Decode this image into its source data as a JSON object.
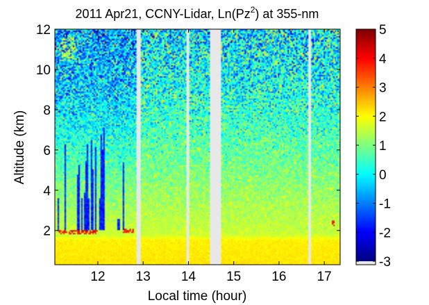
{
  "chart_data": {
    "type": "heatmap",
    "title": {
      "prefix": "2011 Apr21, CCNY-Lidar, Ln(Pz",
      "superscript": "2",
      "suffix": ") at 355-nm"
    },
    "xlabel": "Local time (hour)",
    "ylabel": "Altitude (km)",
    "xlim": [
      11.05,
      17.35
    ],
    "ylim": [
      0.3,
      12
    ],
    "x_ticks": [
      "12",
      "13",
      "14",
      "15",
      "16",
      "17"
    ],
    "y_ticks": [
      "2",
      "4",
      "6",
      "8",
      "10",
      "12"
    ],
    "colorbar": {
      "range": [
        -3,
        5
      ],
      "ticks": [
        "-3",
        "-2",
        "-1",
        "0",
        "1",
        "2",
        "3",
        "4",
        "5"
      ],
      "colormap": "jet",
      "nodata_color": "#e8e8e8"
    },
    "data_gaps_hours": [
      [
        12.85,
        12.95
      ],
      [
        13.97,
        14.02
      ],
      [
        14.47,
        14.73
      ],
      [
        16.65,
        16.72
      ]
    ],
    "boundary_layer_top_km": 1.6,
    "cloud_features_near_2km": [
      {
        "start_hour": 11.1,
        "end_hour": 12.0,
        "altitude_km": 1.9,
        "value": 4.5
      },
      {
        "start_hour": 12.55,
        "end_hour": 12.82,
        "altitude_km": 2.0,
        "value": 4.5
      },
      {
        "start_hour": 17.18,
        "end_hour": 17.24,
        "altitude_km": 2.35,
        "value": 4.5
      }
    ],
    "profile_model": [
      {
        "altitude_km": 0.3,
        "value": 2.2
      },
      {
        "altitude_km": 1.5,
        "value": 2.1
      },
      {
        "altitude_km": 1.8,
        "value": 1.6
      },
      {
        "altitude_km": 4.0,
        "value": 1.2
      },
      {
        "altitude_km": 6.0,
        "value": 0.75
      },
      {
        "altitude_km": 8.0,
        "value": 0.35
      },
      {
        "altitude_km": 10.0,
        "value": 0.05
      },
      {
        "altitude_km": 12.0,
        "value": -0.15
      }
    ]
  }
}
